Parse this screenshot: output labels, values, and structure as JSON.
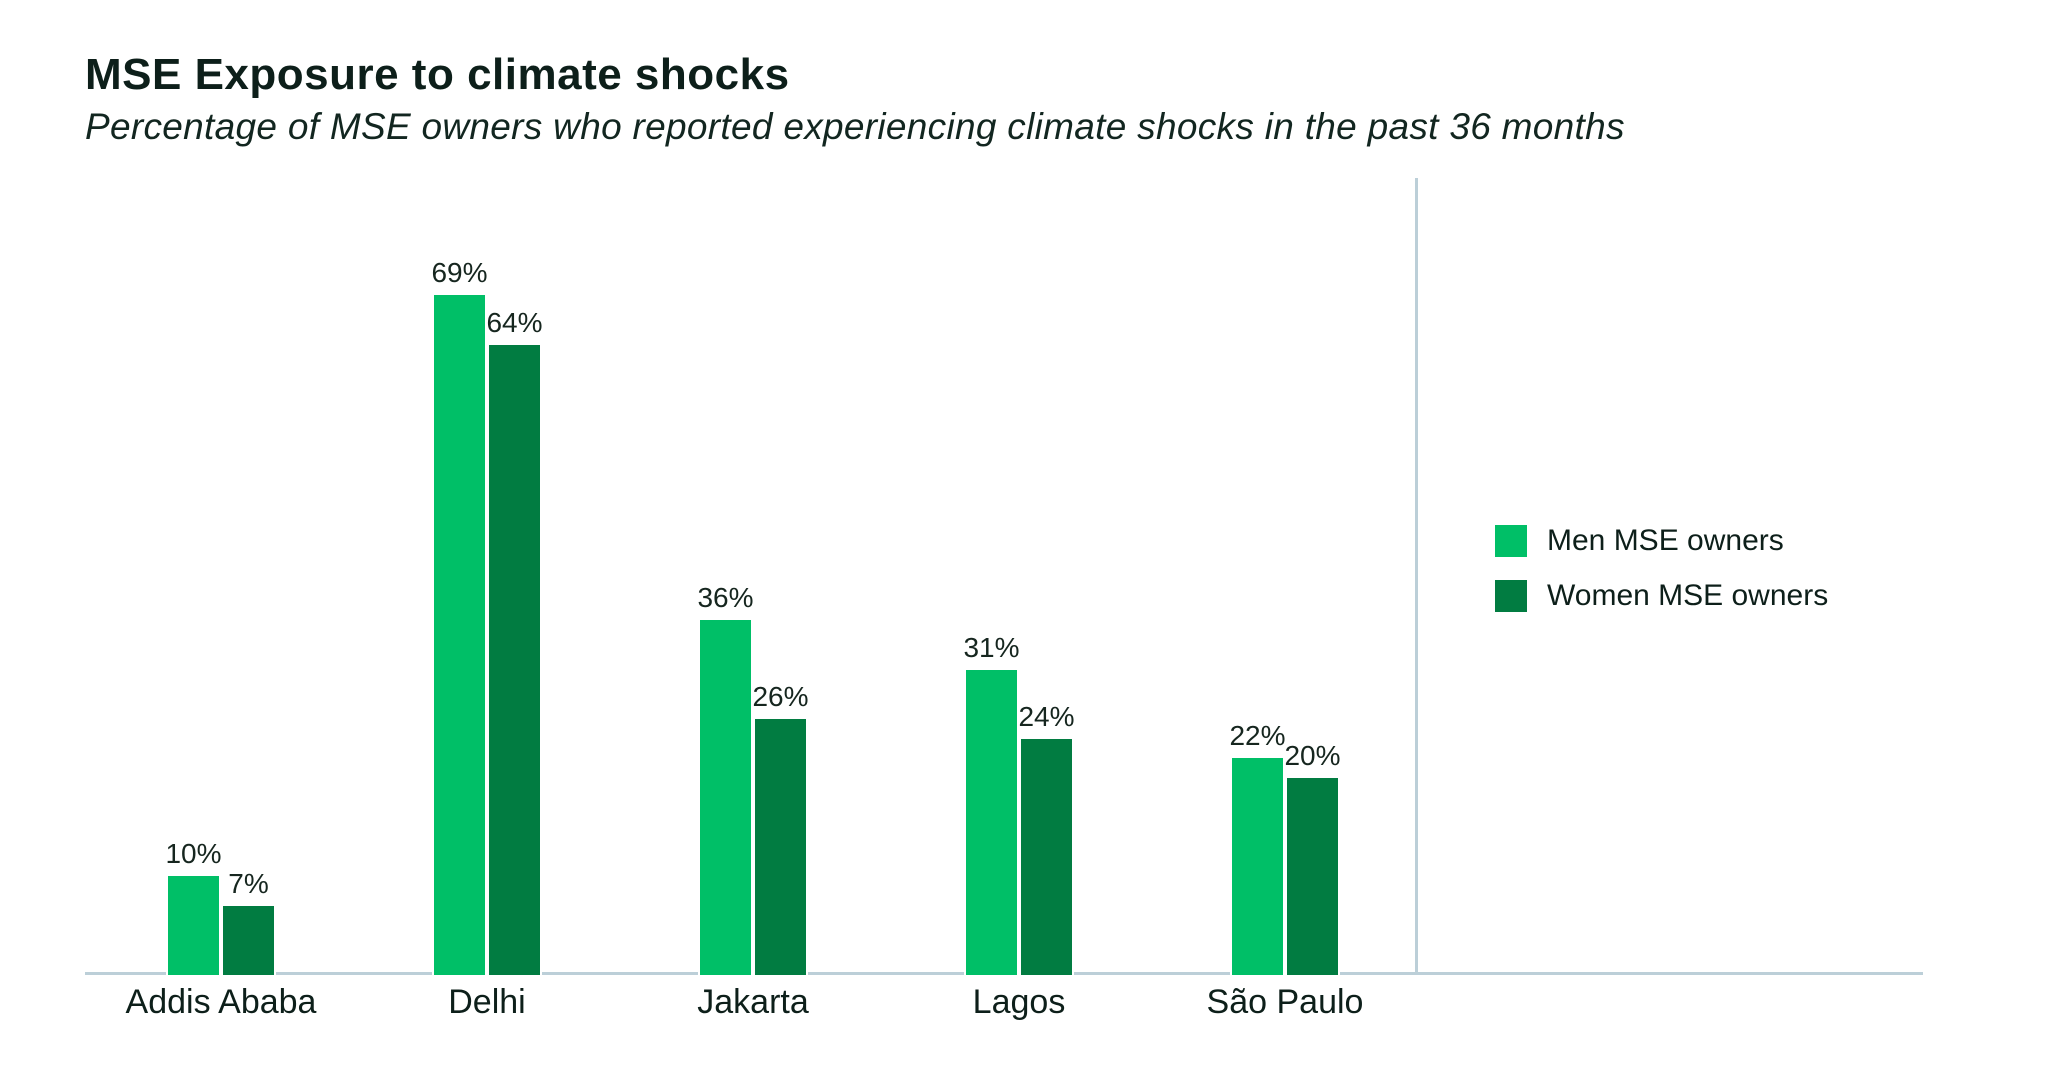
{
  "header": {
    "title": "MSE Exposure to climate shocks",
    "subtitle": "Percentage of MSE owners who reported experiencing climate shocks in the past 36 months"
  },
  "legend": {
    "items": [
      {
        "label": "Men MSE owners",
        "color": "#00bf67"
      },
      {
        "label": "Women MSE owners",
        "color": "#017c41"
      }
    ]
  },
  "chart_data": {
    "type": "bar",
    "title": "MSE Exposure to climate shocks",
    "subtitle": "Percentage of MSE owners who reported experiencing climate shocks in the past 36 months",
    "categories": [
      "Addis Ababa",
      "Delhi",
      "Jakarta",
      "Lagos",
      "São Paulo"
    ],
    "series": [
      {
        "name": "Men MSE owners",
        "color": "#00bf67",
        "values": [
          10,
          69,
          36,
          31,
          22
        ]
      },
      {
        "name": "Women MSE owners",
        "color": "#017c41",
        "values": [
          7,
          64,
          26,
          24,
          20
        ]
      }
    ],
    "value_suffix": "%",
    "data_labels": true,
    "xlabel": "",
    "ylabel": "",
    "ylim": [
      0,
      80
    ],
    "grid": false,
    "legend_position": "right",
    "axis_color": "#bccfd8"
  }
}
